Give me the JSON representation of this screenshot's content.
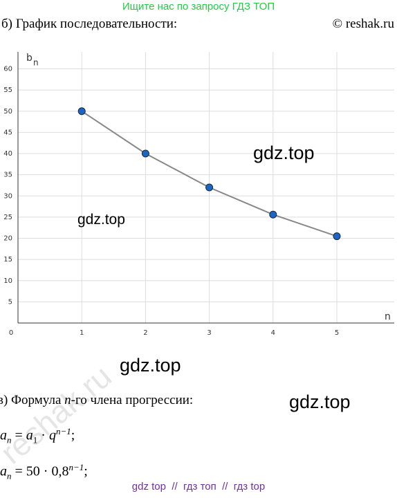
{
  "header": {
    "search_hint": "Ищите нас по запросу ГДЗ ТОП",
    "section_b": "б) График последовательности:",
    "copyright": "© reshak.ru"
  },
  "chart_data": {
    "type": "line",
    "y_label": {
      "base": "b",
      "sub": "n"
    },
    "x_label": "n",
    "x": [
      1,
      2,
      3,
      4,
      5
    ],
    "series": [
      {
        "values": [
          50,
          40,
          32,
          25.6,
          20.48
        ],
        "color": "#1a66c2",
        "line_color": "#888888"
      }
    ],
    "xlim": [
      0,
      5.9
    ],
    "ylim": [
      0,
      64
    ],
    "xticks": [
      0,
      1,
      2,
      3,
      4,
      5
    ],
    "yticks": [
      5,
      10,
      15,
      20,
      25,
      30,
      35,
      40,
      45,
      50,
      55,
      60
    ],
    "grid": true
  },
  "watermarks": [
    "gdz.top",
    "gdz.top",
    "gdz.top",
    "gdz.top"
  ],
  "diagonal_watermark": "reshak.ru",
  "section_c": {
    "prefix": "в) Формула ",
    "var": "n",
    "suffix": "-го члена прогрессии:"
  },
  "formulas": [
    {
      "lhs": "a",
      "lhs_sub": "n",
      "eq": " = ",
      "a": "a",
      "a_sub": "1",
      "dot": " · ",
      "base": "q",
      "exp": "n−1",
      "end": ";"
    },
    {
      "lhs": "a",
      "lhs_sub": "n",
      "eq": " = ",
      "a": "50",
      "dot": " · ",
      "base": "0,8",
      "exp": "n−1",
      "end": ";"
    }
  ],
  "footer": "gdz top  //  гдз топ  //  гдз top"
}
